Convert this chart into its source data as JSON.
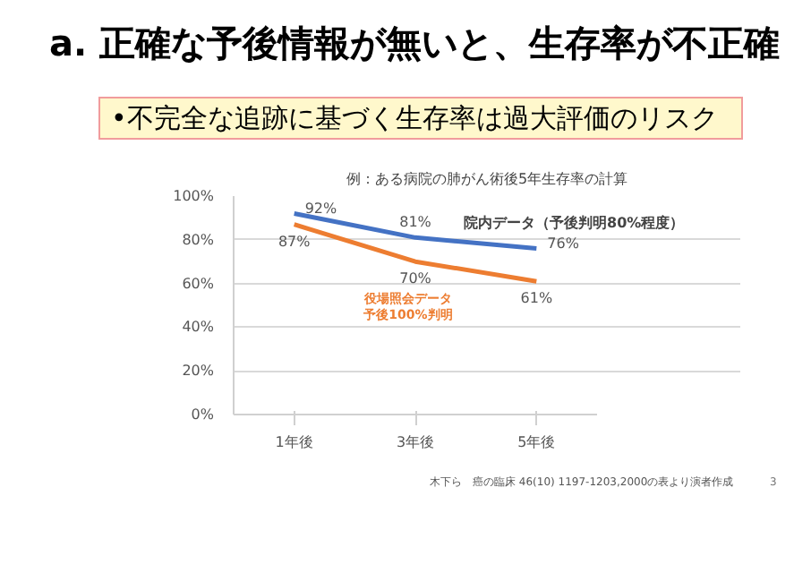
{
  "chart_data": {
    "type": "line",
    "title": "a. 正確な予後情報が無いと、生存率が不正確",
    "subtitle": "•不完全な追跡に基づく生存率は過大評価のリスク",
    "categories": [
      "1年後",
      "3年後",
      "5年後"
    ],
    "series": [
      {
        "name": "院内データ（予後判明80%程度）",
        "color": "#4472c4",
        "values": [
          92,
          81,
          76
        ]
      },
      {
        "name": "役場照会データ予後100%判明",
        "color": "#ed7d31",
        "values": [
          87,
          70,
          61
        ]
      }
    ],
    "ylim": [
      0,
      100
    ],
    "yticks": [
      {
        "value": 0,
        "label": "0%"
      },
      {
        "value": 20,
        "label": "20%"
      },
      {
        "value": 40,
        "label": "40%"
      },
      {
        "value": 60,
        "label": "60%"
      },
      {
        "value": 80,
        "label": "80%"
      },
      {
        "value": 100,
        "label": "100%"
      }
    ],
    "grid": "y",
    "marker": "none",
    "line_style": "solid",
    "value_labels": [
      [
        "92%",
        "81%",
        "76%"
      ],
      [
        "87%",
        "70%",
        "61%"
      ]
    ],
    "annotations": [
      "例：ある病院の肺がん術後5年生存率の計算",
      "木下ら　癌の臨床 46(10) 1197-1203,2000の表より演者作成",
      "3"
    ]
  }
}
